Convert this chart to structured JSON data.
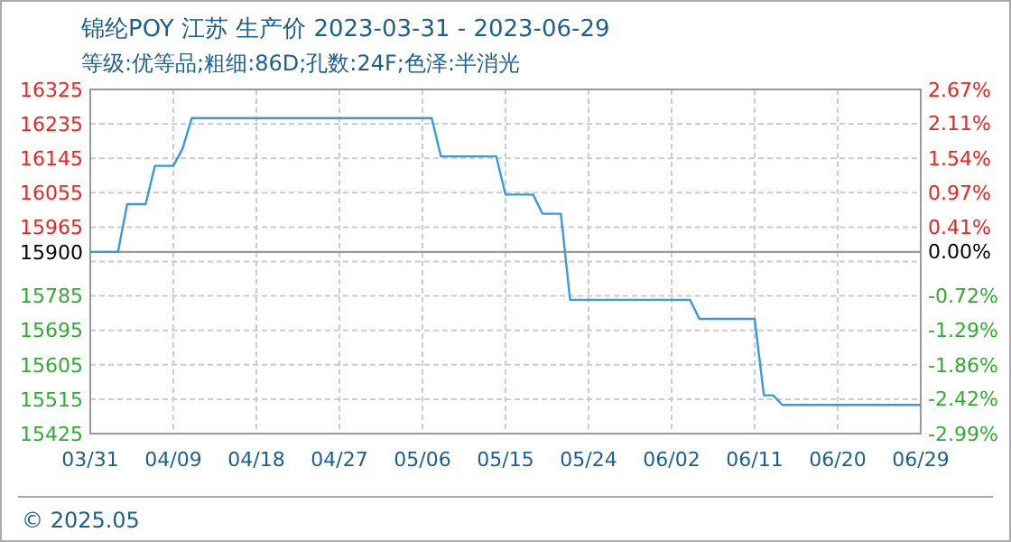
{
  "chart_data": {
    "type": "line",
    "title": "锦纶POY 江苏 生产价 2023-03-31 - 2023-06-29",
    "subtitle": "等级:优等品;粗细:86D;孔数:24F;色泽:半消光",
    "x": [
      "2023-03-31",
      "2023-04-03",
      "2023-04-04",
      "2023-04-06",
      "2023-04-07",
      "2023-04-09",
      "2023-04-10",
      "2023-04-11",
      "2023-05-07",
      "2023-05-08",
      "2023-05-14",
      "2023-05-15",
      "2023-05-18",
      "2023-05-19",
      "2023-05-21",
      "2023-05-22",
      "2023-06-04",
      "2023-06-05",
      "2023-06-11",
      "2023-06-12",
      "2023-06-13",
      "2023-06-14",
      "2023-06-29"
    ],
    "series": [
      {
        "color": "#3a9ad9",
        "values": [
          15900,
          15900,
          16025,
          16025,
          16125,
          16125,
          16170,
          16250,
          16250,
          16150,
          16150,
          16050,
          16050,
          16000,
          16000,
          15775,
          15775,
          15725,
          15725,
          15525,
          15525,
          15500,
          15500
        ]
      }
    ],
    "xlim": [
      "2023-03-31",
      "2023-06-29"
    ],
    "xticks": [
      {
        "value": "2023-03-31",
        "label": "03/31"
      },
      {
        "value": "2023-04-09",
        "label": "04/09"
      },
      {
        "value": "2023-04-18",
        "label": "04/18"
      },
      {
        "value": "2023-04-27",
        "label": "04/27"
      },
      {
        "value": "2023-05-06",
        "label": "05/06"
      },
      {
        "value": "2023-05-15",
        "label": "05/15"
      },
      {
        "value": "2023-05-24",
        "label": "05/24"
      },
      {
        "value": "2023-06-02",
        "label": "06/02"
      },
      {
        "value": "2023-06-11",
        "label": "06/11"
      },
      {
        "value": "2023-06-20",
        "label": "06/20"
      },
      {
        "value": "2023-06-29",
        "label": "06/29"
      }
    ],
    "ylim": [
      15425,
      16325
    ],
    "yticks": [
      16325,
      16235,
      16145,
      16055,
      15965,
      15900,
      {
        "value": 15875,
        "label": null
      },
      15785,
      15695,
      15605,
      15515,
      15425
    ],
    "y2lim": [
      -2.99,
      2.67
    ],
    "y2ticks": [
      {
        "value": 2.67,
        "label": "2.67%"
      },
      {
        "value": 2.11,
        "label": "2.11%"
      },
      {
        "value": 1.54,
        "label": "1.54%"
      },
      {
        "value": 0.97,
        "label": "0.97%"
      },
      {
        "value": 0.41,
        "label": "0.41%"
      },
      {
        "value": 0,
        "label": "0.00%"
      },
      {
        "value": -0.72,
        "label": "-0.72%"
      },
      {
        "value": -1.29,
        "label": "-1.29%"
      },
      {
        "value": -1.86,
        "label": "-1.86%"
      },
      {
        "value": -2.42,
        "label": "-2.42%"
      },
      {
        "value": -2.99,
        "label": "-2.99%"
      }
    ],
    "ref_lines": [
      {
        "axis": "y",
        "value": 15900,
        "color": "#999999"
      }
    ],
    "grid": true,
    "marker": "none",
    "line_style": "solid",
    "annotations": [
      "© 2025.05"
    ]
  }
}
